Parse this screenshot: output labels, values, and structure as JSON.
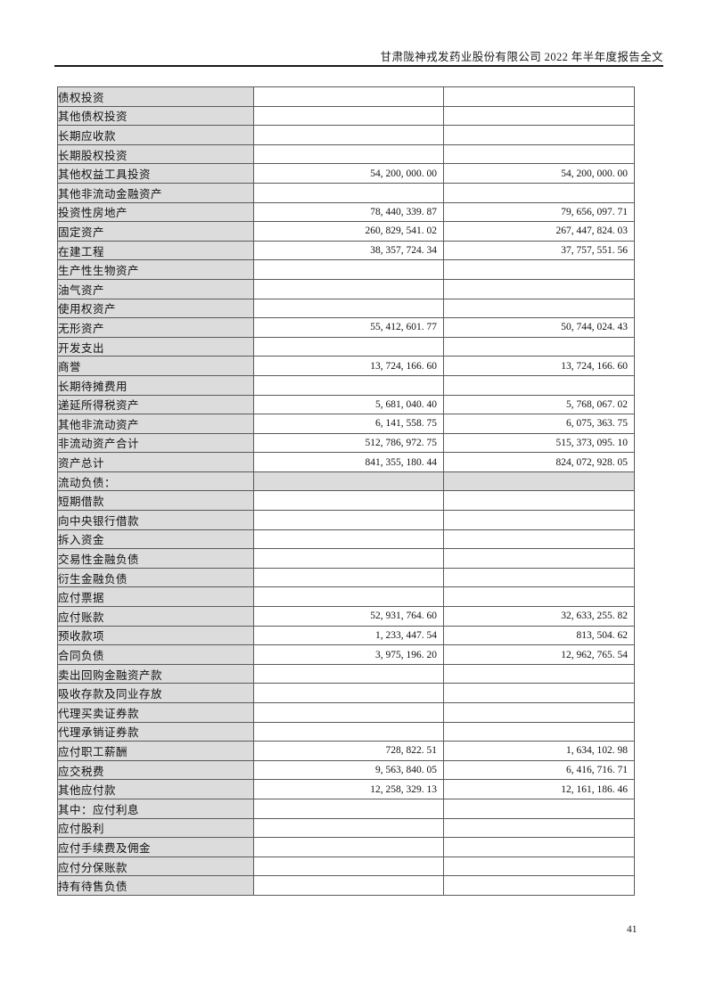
{
  "page": {
    "header_title": "甘肃陇神戎发药业股份有限公司 2022 年半年度报告全文",
    "page_number": "41"
  },
  "colors": {
    "label_cell_bg": "#dcdcdc",
    "table_border": "#595959",
    "header_rule": "#1a1a1a",
    "text": "#111111"
  },
  "table": {
    "rows": [
      {
        "label": "债权投资",
        "indent": 1,
        "section": false,
        "v1": "",
        "v2": ""
      },
      {
        "label": "其他债权投资",
        "indent": 1,
        "section": false,
        "v1": "",
        "v2": ""
      },
      {
        "label": "长期应收款",
        "indent": 1,
        "section": false,
        "v1": "",
        "v2": ""
      },
      {
        "label": "长期股权投资",
        "indent": 1,
        "section": false,
        "v1": "",
        "v2": ""
      },
      {
        "label": "其他权益工具投资",
        "indent": 1,
        "section": false,
        "v1": "54, 200, 000. 00",
        "v2": "54, 200, 000. 00"
      },
      {
        "label": "其他非流动金融资产",
        "indent": 1,
        "section": false,
        "v1": "",
        "v2": ""
      },
      {
        "label": "投资性房地产",
        "indent": 1,
        "section": false,
        "v1": "78, 440, 339. 87",
        "v2": "79, 656, 097. 71"
      },
      {
        "label": "固定资产",
        "indent": 1,
        "section": false,
        "v1": "260, 829, 541. 02",
        "v2": "267, 447, 824. 03"
      },
      {
        "label": "在建工程",
        "indent": 1,
        "section": false,
        "v1": "38, 357, 724. 34",
        "v2": "37, 757, 551. 56"
      },
      {
        "label": "生产性生物资产",
        "indent": 1,
        "section": false,
        "v1": "",
        "v2": ""
      },
      {
        "label": "油气资产",
        "indent": 1,
        "section": false,
        "v1": "",
        "v2": ""
      },
      {
        "label": "使用权资产",
        "indent": 1,
        "section": false,
        "v1": "",
        "v2": ""
      },
      {
        "label": "无形资产",
        "indent": 1,
        "section": false,
        "v1": "55, 412, 601. 77",
        "v2": "50, 744, 024. 43"
      },
      {
        "label": "开发支出",
        "indent": 1,
        "section": false,
        "v1": "",
        "v2": ""
      },
      {
        "label": "商誉",
        "indent": 1,
        "section": false,
        "v1": "13, 724, 166. 60",
        "v2": "13, 724, 166. 60"
      },
      {
        "label": "长期待摊费用",
        "indent": 1,
        "section": false,
        "v1": "",
        "v2": ""
      },
      {
        "label": "递延所得税资产",
        "indent": 1,
        "section": false,
        "v1": "5, 681, 040. 40",
        "v2": "5, 768, 067. 02"
      },
      {
        "label": "其他非流动资产",
        "indent": 1,
        "section": false,
        "v1": "6, 141, 558. 75",
        "v2": "6, 075, 363. 75"
      },
      {
        "label": "非流动资产合计",
        "indent": 0,
        "section": false,
        "v1": "512, 786, 972. 75",
        "v2": "515, 373, 095. 10"
      },
      {
        "label": "资产总计",
        "indent": 0,
        "section": false,
        "v1": "841, 355, 180. 44",
        "v2": "824, 072, 928. 05"
      },
      {
        "label": "流动负债：",
        "indent": 0,
        "section": true,
        "v1": "",
        "v2": ""
      },
      {
        "label": "短期借款",
        "indent": 1,
        "section": false,
        "v1": "",
        "v2": ""
      },
      {
        "label": "向中央银行借款",
        "indent": 1,
        "section": false,
        "v1": "",
        "v2": ""
      },
      {
        "label": "拆入资金",
        "indent": 1,
        "section": false,
        "v1": "",
        "v2": ""
      },
      {
        "label": "交易性金融负债",
        "indent": 1,
        "section": false,
        "v1": "",
        "v2": ""
      },
      {
        "label": "衍生金融负债",
        "indent": 1,
        "section": false,
        "v1": "",
        "v2": ""
      },
      {
        "label": "应付票据",
        "indent": 1,
        "section": false,
        "v1": "",
        "v2": ""
      },
      {
        "label": "应付账款",
        "indent": 1,
        "section": false,
        "v1": "52, 931, 764. 60",
        "v2": "32, 633, 255. 82"
      },
      {
        "label": "预收款项",
        "indent": 1,
        "section": false,
        "v1": "1, 233, 447. 54",
        "v2": "813, 504. 62"
      },
      {
        "label": "合同负债",
        "indent": 1,
        "section": false,
        "v1": "3, 975, 196. 20",
        "v2": "12, 962, 765. 54"
      },
      {
        "label": "卖出回购金融资产款",
        "indent": 1,
        "section": false,
        "v1": "",
        "v2": ""
      },
      {
        "label": "吸收存款及同业存放",
        "indent": 1,
        "section": false,
        "v1": "",
        "v2": ""
      },
      {
        "label": "代理买卖证券款",
        "indent": 1,
        "section": false,
        "v1": "",
        "v2": ""
      },
      {
        "label": "代理承销证券款",
        "indent": 1,
        "section": false,
        "v1": "",
        "v2": ""
      },
      {
        "label": "应付职工薪酬",
        "indent": 1,
        "section": false,
        "v1": "728, 822. 51",
        "v2": "1, 634, 102. 98"
      },
      {
        "label": "应交税费",
        "indent": 1,
        "section": false,
        "v1": "9, 563, 840. 05",
        "v2": "6, 416, 716. 71"
      },
      {
        "label": "其他应付款",
        "indent": 1,
        "section": false,
        "v1": "12, 258, 329. 13",
        "v2": "12, 161, 186. 46"
      },
      {
        "label": "其中：应付利息",
        "indent": 2,
        "section": false,
        "v1": "",
        "v2": ""
      },
      {
        "label": "应付股利",
        "indent": 3,
        "section": false,
        "v1": "",
        "v2": ""
      },
      {
        "label": "应付手续费及佣金",
        "indent": 1,
        "section": false,
        "v1": "",
        "v2": ""
      },
      {
        "label": "应付分保账款",
        "indent": 1,
        "section": false,
        "v1": "",
        "v2": ""
      },
      {
        "label": "持有待售负债",
        "indent": 1,
        "section": false,
        "v1": "",
        "v2": ""
      }
    ]
  }
}
